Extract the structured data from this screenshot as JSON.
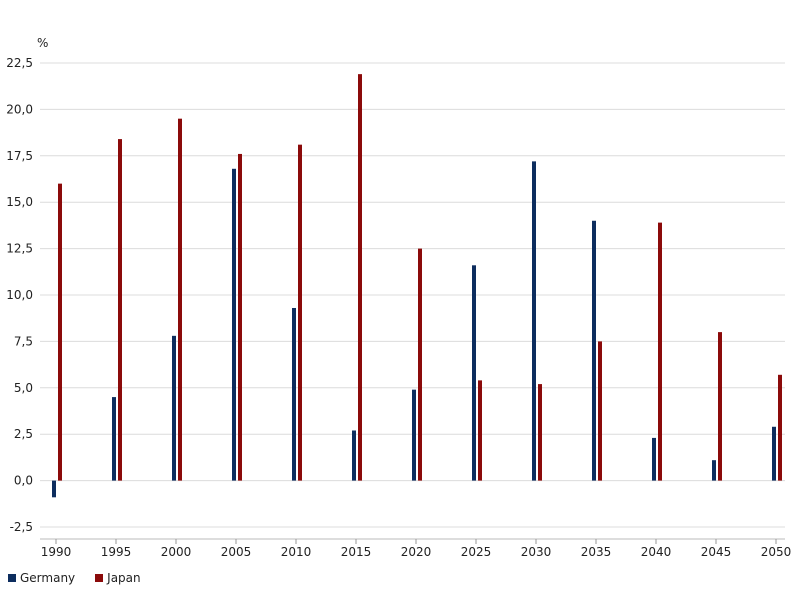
{
  "chart_data": {
    "type": "bar",
    "unit": "%",
    "categories": [
      "1990",
      "1995",
      "2000",
      "2005",
      "2010",
      "2015",
      "2020",
      "2025",
      "2030",
      "2035",
      "2040",
      "2045",
      "2050"
    ],
    "series": [
      {
        "name": "Germany",
        "color": "#0d2d5e",
        "values": [
          -0.9,
          4.5,
          7.8,
          16.8,
          9.3,
          2.7,
          4.9,
          11.6,
          17.2,
          14.0,
          2.3,
          1.1,
          2.9
        ]
      },
      {
        "name": "Japan",
        "color": "#8b0a0a",
        "values": [
          16.0,
          18.4,
          19.5,
          17.6,
          18.1,
          21.9,
          12.5,
          5.4,
          5.2,
          7.5,
          13.9,
          8.0,
          5.7
        ]
      }
    ],
    "y_ticks": [
      "-2,5",
      "0,0",
      "2,5",
      "5,0",
      "7,5",
      "10,0",
      "12,5",
      "15,0",
      "17,5",
      "20,0",
      "22,5"
    ],
    "ylim": [
      -2.5,
      22.5
    ],
    "grid": true,
    "legend_position": "bottom-left"
  }
}
